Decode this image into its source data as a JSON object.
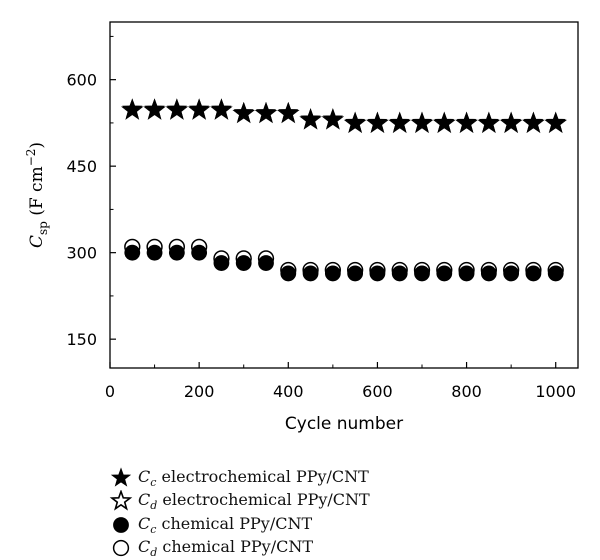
{
  "chart_data": {
    "type": "scatter",
    "xlabel": "Cycle number",
    "ylabel": {
      "symbol": "C",
      "subscript": "sp",
      "unit": "(F cm",
      "sup": "−2",
      "close": ")"
    },
    "xlim": [
      0,
      1050
    ],
    "ylim": [
      100,
      700
    ],
    "xticks": [
      0,
      200,
      400,
      600,
      800,
      1000
    ],
    "yticks": [
      150,
      300,
      450,
      600
    ],
    "x": [
      50,
      100,
      150,
      200,
      250,
      300,
      350,
      400,
      450,
      500,
      550,
      600,
      650,
      700,
      750,
      800,
      850,
      900,
      950,
      1000
    ],
    "series": [
      {
        "name": "electrochemical PPy/CNT",
        "symbol": "C",
        "sub": "c",
        "marker": "star-filled",
        "values": [
          549,
          549,
          549,
          549,
          549,
          543,
          543,
          543,
          532,
          532,
          526,
          526,
          526,
          526,
          526,
          526,
          526,
          526,
          526,
          526
        ]
      },
      {
        "name": "electrochemical PPy/CNT",
        "symbol": "C",
        "sub": "d",
        "marker": "star-open",
        "values": [
          547,
          547,
          547,
          547,
          547,
          541,
          541,
          541,
          530,
          530,
          524,
          524,
          524,
          524,
          524,
          524,
          524,
          524,
          524,
          524
        ]
      },
      {
        "name": "chemical PPy/CNT",
        "symbol": "C",
        "sub": "c",
        "marker": "circle-filled",
        "values": [
          300,
          300,
          300,
          300,
          282,
          282,
          282,
          264,
          264,
          264,
          264,
          264,
          264,
          264,
          264,
          264,
          264,
          264,
          264,
          264
        ]
      },
      {
        "name": "chemical PPy/CNT",
        "symbol": "C",
        "sub": "d",
        "marker": "circle-open",
        "values": [
          310,
          310,
          310,
          310,
          290,
          290,
          290,
          270,
          270,
          270,
          270,
          270,
          270,
          270,
          270,
          270,
          270,
          270,
          270,
          270
        ]
      }
    ],
    "legend_position": "below",
    "grid": false,
    "colors": {
      "marker": "#000000",
      "axis": "#000000",
      "background": "#ffffff"
    }
  }
}
